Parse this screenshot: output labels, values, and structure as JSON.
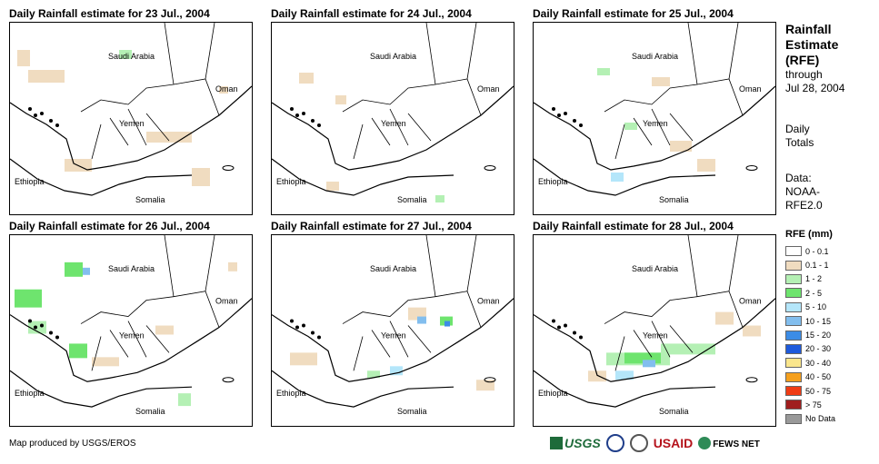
{
  "panels": [
    {
      "title": "Daily Rainfall estimate for 23 Jul., 2004"
    },
    {
      "title": "Daily Rainfall estimate for 24 Jul., 2004"
    },
    {
      "title": "Daily Rainfall estimate for 25 Jul., 2004"
    },
    {
      "title": "Daily Rainfall estimate for 26 Jul., 2004"
    },
    {
      "title": "Daily Rainfall estimate for 27 Jul., 2004"
    },
    {
      "title": "Daily Rainfall estimate for 28 Jul., 2004"
    }
  ],
  "map_labels": {
    "saudi": "Saudi Arabia",
    "oman": "Oman",
    "yemen": "Yemen",
    "ethiopia": "Ethiopia",
    "somalia": "Somalia"
  },
  "sidebar": {
    "title_line1": "Rainfall",
    "title_line2": "Estimate",
    "title_line3": "(RFE)",
    "through": "through",
    "date": "Jul 28, 2004",
    "daily_line1": "Daily",
    "daily_line2": "Totals",
    "data_line1": "Data:",
    "data_line2": "NOAA-",
    "data_line3": "RFE2.0"
  },
  "legend": {
    "title": "RFE (mm)",
    "items": [
      {
        "label": "0 - 0.1",
        "color": "#ffffff"
      },
      {
        "label": "0.1 - 1",
        "color": "#f0dcc0"
      },
      {
        "label": "1 - 2",
        "color": "#b4f0b4"
      },
      {
        "label": "2 - 5",
        "color": "#6ee46e"
      },
      {
        "label": "5 - 10",
        "color": "#b4e6fa"
      },
      {
        "label": "10 - 15",
        "color": "#82beee"
      },
      {
        "label": "15 - 20",
        "color": "#3c8ce6"
      },
      {
        "label": "20 - 30",
        "color": "#1e5adc"
      },
      {
        "label": "30 - 40",
        "color": "#fae68c"
      },
      {
        "label": "40 - 50",
        "color": "#f5a01e"
      },
      {
        "label": "50 - 75",
        "color": "#f03c14"
      },
      {
        "label": "> 75",
        "color": "#a01e1e"
      },
      {
        "label": "No Data",
        "color": "#999999"
      }
    ]
  },
  "footer": {
    "credit": "Map produced by USGS/EROS",
    "usgs": "USGS",
    "usaid": "USAID",
    "fews": "FEWS NET"
  }
}
